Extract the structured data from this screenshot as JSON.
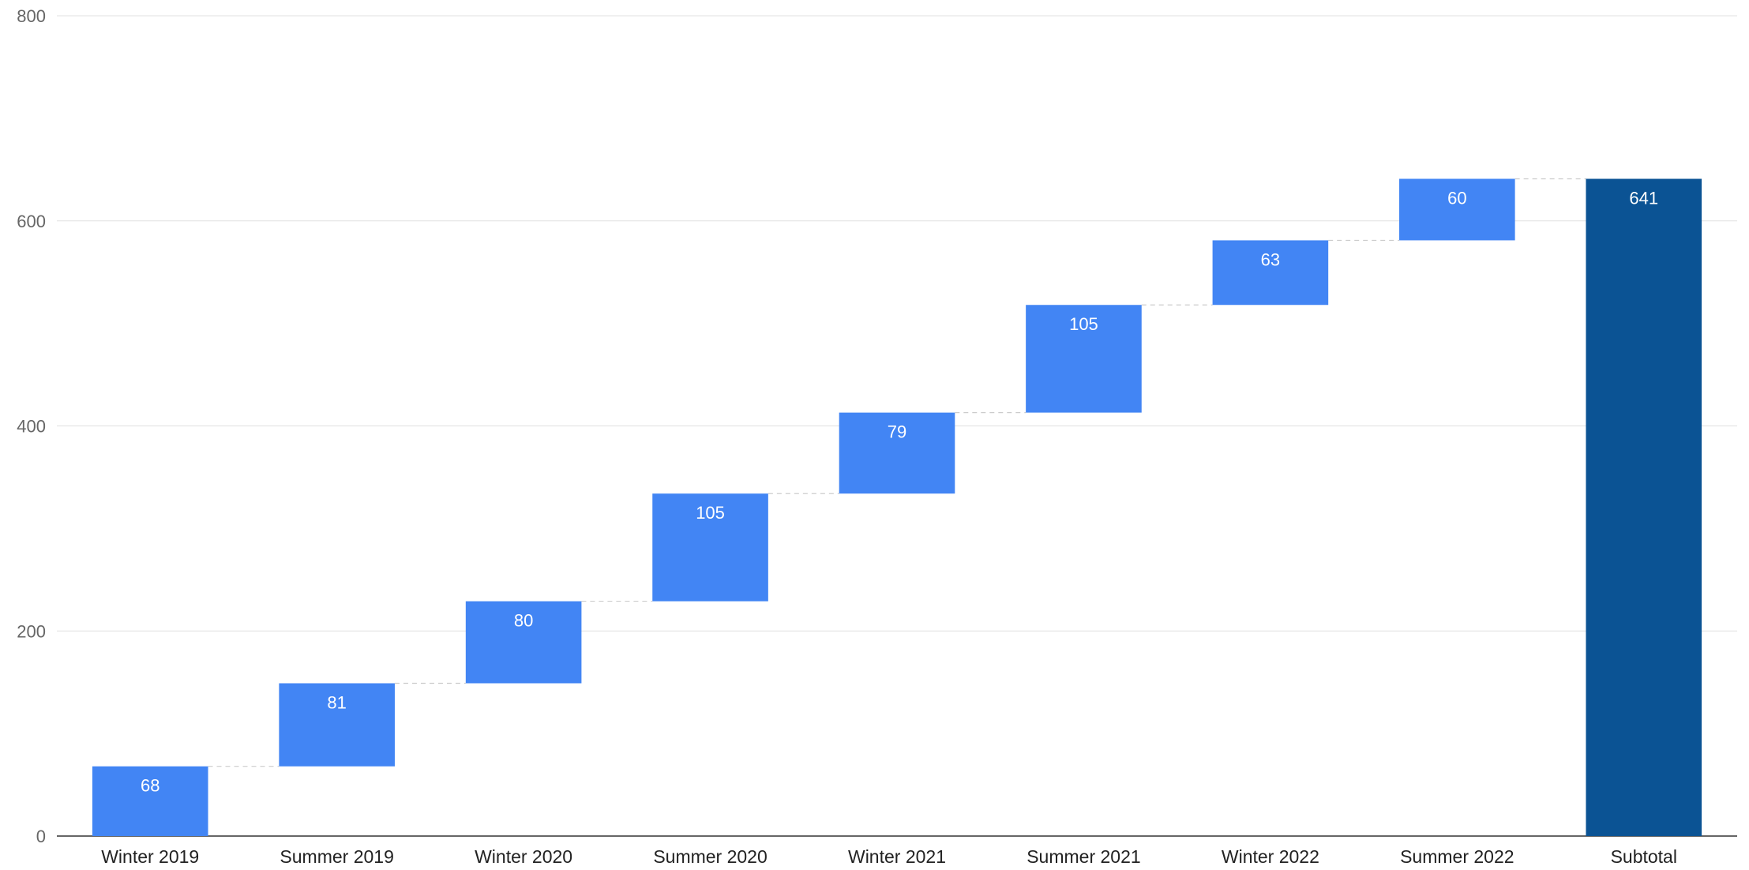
{
  "chart_data": {
    "type": "bar",
    "variant": "waterfall",
    "title": "",
    "xlabel": "",
    "ylabel": "",
    "ylim": [
      0,
      800
    ],
    "yticks": [
      0,
      200,
      400,
      600,
      800
    ],
    "grid": true,
    "legend": "none",
    "categories": [
      "Winter 2019",
      "Summer 2019",
      "Winter 2020",
      "Summer 2020",
      "Winter 2021",
      "Summer 2021",
      "Winter 2022",
      "Summer 2022",
      "Subtotal"
    ],
    "values": [
      68,
      81,
      80,
      105,
      79,
      105,
      63,
      60,
      641
    ],
    "is_total": [
      false,
      false,
      false,
      false,
      false,
      false,
      false,
      false,
      true
    ],
    "colors": {
      "increase": "#4285f4",
      "total": "#0b5394",
      "grid": "#e0e0e0",
      "connector": "#cccccc"
    }
  }
}
